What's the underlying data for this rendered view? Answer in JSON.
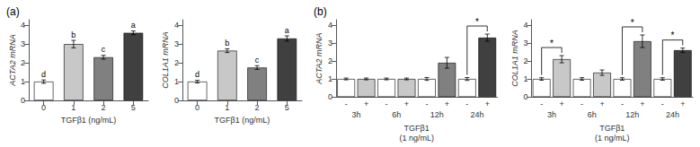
{
  "chart_data": [
    {
      "type": "bar",
      "title": "(a)",
      "categories": [
        "0",
        "1",
        "2",
        "5"
      ],
      "values": [
        1.0,
        3.0,
        2.3,
        3.6
      ],
      "errors": [
        0.09,
        0.2,
        0.1,
        0.1
      ],
      "colors": [
        "#ffffff",
        "#c8c8c8",
        "#808080",
        "#404040"
      ],
      "annotations": [
        "d",
        "b",
        "c",
        "a"
      ],
      "xlabel": "TGFβ1 (ng/mL)",
      "ylabel": "ACTA2 mRNA",
      "ylim": [
        0,
        4.3
      ],
      "yticks": [
        0,
        1,
        2,
        3,
        4
      ],
      "grid": false
    },
    {
      "type": "bar",
      "categories": [
        "0",
        "1",
        "2",
        "5"
      ],
      "values": [
        1.0,
        2.65,
        1.75,
        3.3
      ],
      "errors": [
        0.07,
        0.1,
        0.1,
        0.14
      ],
      "colors": [
        "#ffffff",
        "#c8c8c8",
        "#808080",
        "#404040"
      ],
      "annotations": [
        "d",
        "b",
        "c",
        "a"
      ],
      "xlabel": "TGFβ1 (ng/mL)",
      "ylabel": "COL1A1 mRNA",
      "ylim": [
        0,
        4.3
      ],
      "yticks": [
        0,
        1,
        2,
        3,
        4
      ],
      "grid": false
    },
    {
      "type": "bar",
      "title": "(b)",
      "categories": [
        "-",
        "+",
        "-",
        "+",
        "-",
        "+",
        "-",
        "+"
      ],
      "groups": [
        "3h",
        "6h",
        "12h",
        "24h"
      ],
      "values": [
        1.0,
        1.0,
        1.0,
        1.0,
        1.0,
        1.9,
        1.0,
        3.3
      ],
      "errors": [
        0.05,
        0.05,
        0.05,
        0.05,
        0.08,
        0.3,
        0.08,
        0.2
      ],
      "colors": [
        "#ffffff",
        "#c8c8c8",
        "#ffffff",
        "#c8c8c8",
        "#ffffff",
        "#808080",
        "#ffffff",
        "#404040"
      ],
      "annotations": [
        {
          "text": "*",
          "between": [
            6,
            7
          ]
        }
      ],
      "xlabel": "TGFβ1\n(1 ng/mL)",
      "ylabel": "ACTA2 mRNA",
      "ylim": [
        0,
        4.3
      ],
      "yticks": [
        0,
        1,
        2,
        3,
        4
      ],
      "grid": false
    },
    {
      "type": "bar",
      "categories": [
        "-",
        "+",
        "-",
        "+",
        "-",
        "+",
        "-",
        "+"
      ],
      "groups": [
        "3h",
        "6h",
        "12h",
        "24h"
      ],
      "values": [
        1.0,
        2.1,
        1.0,
        1.35,
        1.0,
        3.1,
        1.0,
        2.6
      ],
      "errors": [
        0.07,
        0.2,
        0.07,
        0.15,
        0.07,
        0.35,
        0.07,
        0.12
      ],
      "colors": [
        "#ffffff",
        "#c8c8c8",
        "#ffffff",
        "#c8c8c8",
        "#ffffff",
        "#808080",
        "#ffffff",
        "#404040"
      ],
      "annotations": [
        {
          "text": "*",
          "between": [
            0,
            1
          ]
        },
        {
          "text": "*",
          "between": [
            4,
            5
          ]
        },
        {
          "text": "*",
          "between": [
            6,
            7
          ]
        }
      ],
      "xlabel": "TGFβ1\n(1 ng/mL)",
      "ylabel": "COL1A1 mRNA",
      "ylim": [
        0,
        4.3
      ],
      "yticks": [
        0,
        1,
        2,
        3,
        4
      ],
      "grid": false
    }
  ]
}
